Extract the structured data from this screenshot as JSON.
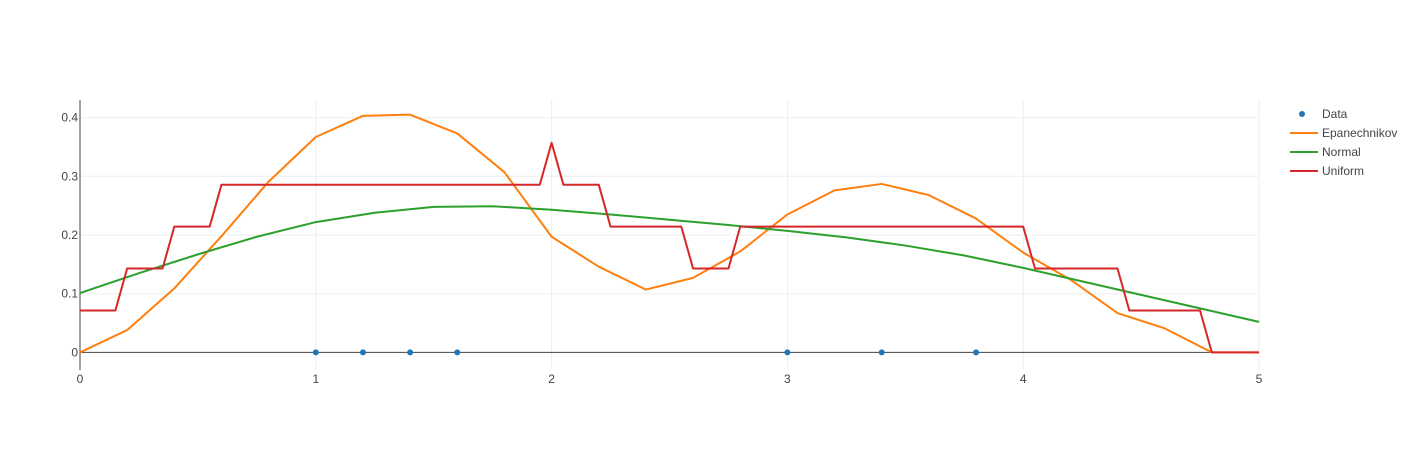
{
  "chart_data": {
    "type": "line",
    "title": "",
    "xlabel": "",
    "ylabel": "",
    "xlim": [
      0,
      5
    ],
    "ylim": [
      -0.03,
      0.43
    ],
    "x_ticks": [
      0,
      1,
      2,
      3,
      4,
      5
    ],
    "x_tick_labels": [
      "0",
      "1",
      "2",
      "3",
      "4",
      "5"
    ],
    "y_ticks": [
      0,
      0.1,
      0.2,
      0.3,
      0.4
    ],
    "y_tick_labels": [
      "0",
      "0.1",
      "0.2",
      "0.3",
      "0.4"
    ],
    "grid": true,
    "legend_position": "top-right",
    "series": [
      {
        "name": "Data",
        "mode": "markers",
        "color": "#1f77b4",
        "x": [
          1.0,
          1.2,
          1.4,
          1.6,
          3.0,
          3.4,
          3.8
        ],
        "y": [
          0,
          0,
          0,
          0,
          0,
          0,
          0
        ]
      },
      {
        "name": "Epanechnikov",
        "mode": "lines",
        "color": "#ff7f0e",
        "x": [
          0,
          0.2,
          0.4,
          0.6,
          0.8,
          1.0,
          1.2,
          1.4,
          1.6,
          1.8,
          2.0,
          2.2,
          2.4,
          2.6,
          2.8,
          3.0,
          3.2,
          3.4,
          3.6,
          3.8,
          4.0,
          4.2,
          4.4,
          4.6,
          4.8,
          5.0
        ],
        "y": [
          0,
          0.038,
          0.109,
          0.198,
          0.291,
          0.367,
          0.403,
          0.405,
          0.373,
          0.307,
          0.197,
          0.146,
          0.107,
          0.127,
          0.172,
          0.235,
          0.276,
          0.287,
          0.268,
          0.228,
          0.17,
          0.124,
          0.067,
          0.041,
          0.0,
          0.0
        ]
      },
      {
        "name": "Normal",
        "mode": "lines",
        "color": "#2ca02c",
        "x": [
          0,
          0.25,
          0.5,
          0.75,
          1.0,
          1.25,
          1.5,
          1.75,
          2.0,
          2.25,
          2.5,
          2.75,
          3.0,
          3.25,
          3.5,
          3.75,
          4.0,
          4.25,
          4.5,
          4.75,
          5.0
        ],
        "y": [
          0.101,
          0.135,
          0.167,
          0.197,
          0.222,
          0.238,
          0.248,
          0.249,
          0.243,
          0.235,
          0.226,
          0.217,
          0.207,
          0.196,
          0.182,
          0.165,
          0.144,
          0.121,
          0.098,
          0.075,
          0.052
        ]
      },
      {
        "name": "Uniform",
        "mode": "lines",
        "color": "#d62728",
        "x": [
          0,
          0.15,
          0.2,
          0.35,
          0.4,
          0.55,
          0.6,
          0.8,
          1.0,
          1.2,
          1.4,
          1.6,
          1.8,
          1.95,
          2.0,
          2.05,
          2.2,
          2.25,
          2.4,
          2.55,
          2.6,
          2.75,
          2.8,
          3.0,
          3.2,
          3.4,
          3.6,
          3.8,
          4.0,
          4.05,
          4.2,
          4.4,
          4.45,
          4.6,
          4.75,
          4.8,
          5.0
        ],
        "y": [
          0.0714,
          0.0714,
          0.1429,
          0.1429,
          0.2143,
          0.2143,
          0.2857,
          0.2857,
          0.2857,
          0.2857,
          0.2857,
          0.2857,
          0.2857,
          0.2857,
          0.3571,
          0.2857,
          0.2857,
          0.2143,
          0.2143,
          0.2143,
          0.1429,
          0.1429,
          0.2143,
          0.2143,
          0.2143,
          0.2143,
          0.2143,
          0.2143,
          0.2143,
          0.1429,
          0.1429,
          0.1429,
          0.0714,
          0.0714,
          0.0714,
          0.0,
          0.0
        ]
      }
    ]
  }
}
